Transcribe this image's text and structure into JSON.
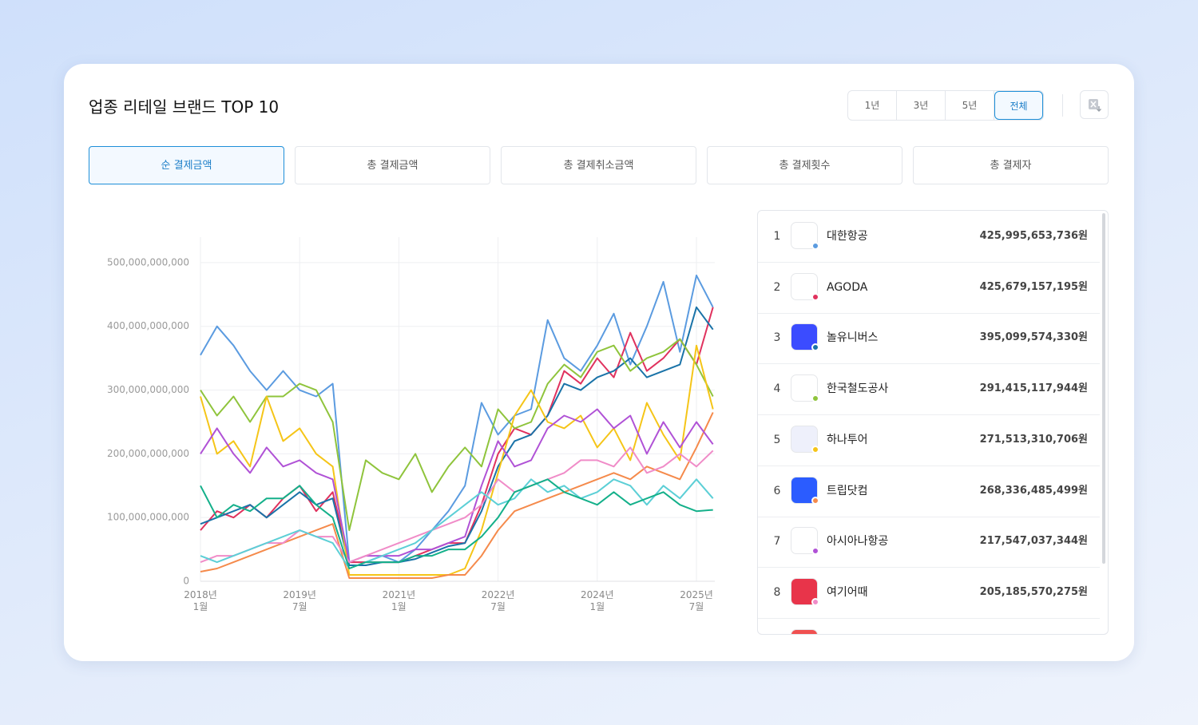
{
  "header": {
    "title": "업종 리테일 브랜드 TOP 10"
  },
  "periods": {
    "options": [
      "1년",
      "3년",
      "5년",
      "전체"
    ],
    "selected": 3
  },
  "tabs": {
    "options": [
      "순 결제금액",
      "총 결제금액",
      "총 결제취소금액",
      "총 결제횟수",
      "총 결제자"
    ],
    "selected": 0
  },
  "chart_data": {
    "type": "line",
    "categories": [
      "2018년 1월",
      null,
      null,
      null,
      null,
      null,
      "2019년 7월",
      null,
      null,
      null,
      null,
      null,
      "2021년 1월",
      null,
      null,
      null,
      null,
      null,
      "2022년 7월",
      null,
      null,
      null,
      null,
      null,
      "2024년 1월",
      null,
      null,
      null,
      null,
      null,
      "2025년 7월",
      null
    ],
    "ylim": [
      0,
      540000000000.0
    ],
    "yticks": [
      0,
      {
        "value": 100000000000,
        "label": "100,000,000,000"
      },
      {
        "value": 200000000000,
        "label": "200,000,000,000"
      },
      {
        "value": 300000000000,
        "label": "300,000,000,000"
      },
      {
        "value": 400000000000,
        "label": "400,000,000,000"
      },
      {
        "value": 500000000000,
        "label": "500,000,000,000"
      }
    ],
    "grid": true,
    "series": [
      {
        "name": "대한항공",
        "color": "#5b9be0",
        "values": [
          355000000000.0,
          400000000000.0,
          370000000000.0,
          330000000000.0,
          300000000000.0,
          330000000000.0,
          300000000000.0,
          290000000000.0,
          310000000000.0,
          30000000000.0,
          30000000000.0,
          40000000000.0,
          30000000000.0,
          50000000000.0,
          80000000000.0,
          110000000000.0,
          150000000000.0,
          280000000000.0,
          230000000000.0,
          260000000000.0,
          270000000000.0,
          410000000000.0,
          350000000000.0,
          330000000000.0,
          370000000000.0,
          420000000000.0,
          340000000000.0,
          400000000000.0,
          470000000000.0,
          360000000000.0,
          480000000000.0,
          430000000000.0
        ]
      },
      {
        "name": "AGODA",
        "color": "#e0325e",
        "values": [
          80000000000.0,
          110000000000.0,
          100000000000.0,
          120000000000.0,
          100000000000.0,
          130000000000.0,
          150000000000.0,
          110000000000.0,
          140000000000.0,
          30000000000.0,
          30000000000.0,
          30000000000.0,
          30000000000.0,
          40000000000.0,
          50000000000.0,
          60000000000.0,
          60000000000.0,
          120000000000.0,
          200000000000.0,
          240000000000.0,
          230000000000.0,
          260000000000.0,
          330000000000.0,
          310000000000.0,
          350000000000.0,
          320000000000.0,
          390000000000.0,
          330000000000.0,
          350000000000.0,
          380000000000.0,
          340000000000.0,
          430000000000.0
        ]
      },
      {
        "name": "놀유니버스",
        "color": "#1a73a8",
        "values": [
          90000000000.0,
          100000000000.0,
          110000000000.0,
          120000000000.0,
          100000000000.0,
          120000000000.0,
          140000000000.0,
          120000000000.0,
          130000000000.0,
          25000000000.0,
          25000000000.0,
          30000000000.0,
          30000000000.0,
          35000000000.0,
          45000000000.0,
          55000000000.0,
          60000000000.0,
          110000000000.0,
          180000000000.0,
          220000000000.0,
          230000000000.0,
          260000000000.0,
          310000000000.0,
          300000000000.0,
          320000000000.0,
          330000000000.0,
          350000000000.0,
          320000000000.0,
          330000000000.0,
          340000000000.0,
          430000000000.0,
          395000000000.0
        ]
      },
      {
        "name": "한국철도공사",
        "color": "#8fc43c",
        "values": [
          300000000000.0,
          260000000000.0,
          290000000000.0,
          250000000000.0,
          290000000000.0,
          290000000000.0,
          310000000000.0,
          300000000000.0,
          250000000000.0,
          80000000000.0,
          190000000000.0,
          170000000000.0,
          160000000000.0,
          200000000000.0,
          140000000000.0,
          180000000000.0,
          210000000000.0,
          180000000000.0,
          270000000000.0,
          240000000000.0,
          250000000000.0,
          310000000000.0,
          340000000000.0,
          320000000000.0,
          360000000000.0,
          370000000000.0,
          330000000000.0,
          350000000000.0,
          360000000000.0,
          380000000000.0,
          340000000000.0,
          290000000000.0
        ]
      },
      {
        "name": "하나투어",
        "color": "#f5c518",
        "values": [
          290000000000.0,
          200000000000.0,
          220000000000.0,
          180000000000.0,
          290000000000.0,
          220000000000.0,
          240000000000.0,
          200000000000.0,
          180000000000.0,
          10000000000.0,
          10000000000.0,
          10000000000.0,
          10000000000.0,
          10000000000.0,
          10000000000.0,
          10000000000.0,
          20000000000.0,
          80000000000.0,
          170000000000.0,
          260000000000.0,
          300000000000.0,
          250000000000.0,
          240000000000.0,
          260000000000.0,
          210000000000.0,
          240000000000.0,
          190000000000.0,
          280000000000.0,
          230000000000.0,
          190000000000.0,
          370000000000.0,
          270000000000.0
        ]
      },
      {
        "name": "트립닷컴",
        "color": "#f58a4b",
        "values": [
          15000000000.0,
          20000000000.0,
          30000000000.0,
          40000000000.0,
          50000000000.0,
          60000000000.0,
          70000000000.0,
          80000000000.0,
          90000000000.0,
          5000000000.0,
          5000000000.0,
          5000000000.0,
          5000000000.0,
          5000000000.0,
          5000000000.0,
          10000000000.0,
          10000000000.0,
          40000000000.0,
          80000000000.0,
          110000000000.0,
          120000000000.0,
          130000000000.0,
          140000000000.0,
          150000000000.0,
          160000000000.0,
          170000000000.0,
          160000000000.0,
          180000000000.0,
          170000000000.0,
          160000000000.0,
          210000000000.0,
          265000000000.0
        ]
      },
      {
        "name": "아시아나항공",
        "color": "#b052d6",
        "values": [
          200000000000.0,
          240000000000.0,
          200000000000.0,
          170000000000.0,
          210000000000.0,
          180000000000.0,
          190000000000.0,
          170000000000.0,
          160000000000.0,
          30000000000.0,
          40000000000.0,
          40000000000.0,
          40000000000.0,
          50000000000.0,
          50000000000.0,
          60000000000.0,
          70000000000.0,
          150000000000.0,
          220000000000.0,
          180000000000.0,
          190000000000.0,
          240000000000.0,
          260000000000.0,
          250000000000.0,
          270000000000.0,
          240000000000.0,
          260000000000.0,
          200000000000.0,
          250000000000.0,
          210000000000.0,
          250000000000.0,
          215000000000.0
        ]
      },
      {
        "name": "여기어때",
        "color": "#f08cc8",
        "values": [
          30000000000.0,
          40000000000.0,
          40000000000.0,
          50000000000.0,
          60000000000.0,
          60000000000.0,
          80000000000.0,
          70000000000.0,
          70000000000.0,
          30000000000.0,
          40000000000.0,
          50000000000.0,
          60000000000.0,
          70000000000.0,
          80000000000.0,
          90000000000.0,
          100000000000.0,
          120000000000.0,
          160000000000.0,
          140000000000.0,
          150000000000.0,
          160000000000.0,
          170000000000.0,
          190000000000.0,
          190000000000.0,
          180000000000.0,
          210000000000.0,
          170000000000.0,
          180000000000.0,
          200000000000.0,
          180000000000.0,
          205000000000.0
        ]
      },
      {
        "color": "#5ccfd6",
        "values": [
          40000000000.0,
          30000000000.0,
          40000000000.0,
          50000000000.0,
          60000000000.0,
          70000000000.0,
          80000000000.0,
          70000000000.0,
          60000000000.0,
          20000000000.0,
          30000000000.0,
          40000000000.0,
          50000000000.0,
          60000000000.0,
          80000000000.0,
          100000000000.0,
          120000000000.0,
          140000000000.0,
          120000000000.0,
          130000000000.0,
          160000000000.0,
          140000000000.0,
          150000000000.0,
          130000000000.0,
          140000000000.0,
          160000000000.0,
          150000000000.0,
          120000000000.0,
          150000000000.0,
          130000000000.0,
          160000000000.0,
          130000000000.0
        ]
      },
      {
        "color": "#14b08a",
        "values": [
          150000000000.0,
          100000000000.0,
          120000000000.0,
          110000000000.0,
          130000000000.0,
          130000000000.0,
          150000000000.0,
          120000000000.0,
          100000000000.0,
          20000000000.0,
          30000000000.0,
          30000000000.0,
          30000000000.0,
          40000000000.0,
          40000000000.0,
          50000000000.0,
          50000000000.0,
          70000000000.0,
          100000000000.0,
          140000000000.0,
          150000000000.0,
          160000000000.0,
          140000000000.0,
          130000000000.0,
          120000000000.0,
          140000000000.0,
          120000000000.0,
          130000000000.0,
          140000000000.0,
          120000000000.0,
          110000000000.0,
          112000000000.0
        ]
      }
    ]
  },
  "ranking": [
    {
      "rank": 1,
      "amount": "425,995,653,736원"
    },
    {
      "rank": 2,
      "amount": "425,679,157,195원"
    },
    {
      "rank": 3,
      "amount": "395,099,574,330원"
    },
    {
      "rank": 4,
      "amount": "291,415,117,944원"
    },
    {
      "rank": 5,
      "amount": "271,513,310,706원"
    },
    {
      "rank": 6,
      "amount": "268,336,485,499원"
    },
    {
      "rank": 7,
      "amount": "217,547,037,344원"
    },
    {
      "rank": 8,
      "amount": "205,185,570,275원"
    }
  ]
}
